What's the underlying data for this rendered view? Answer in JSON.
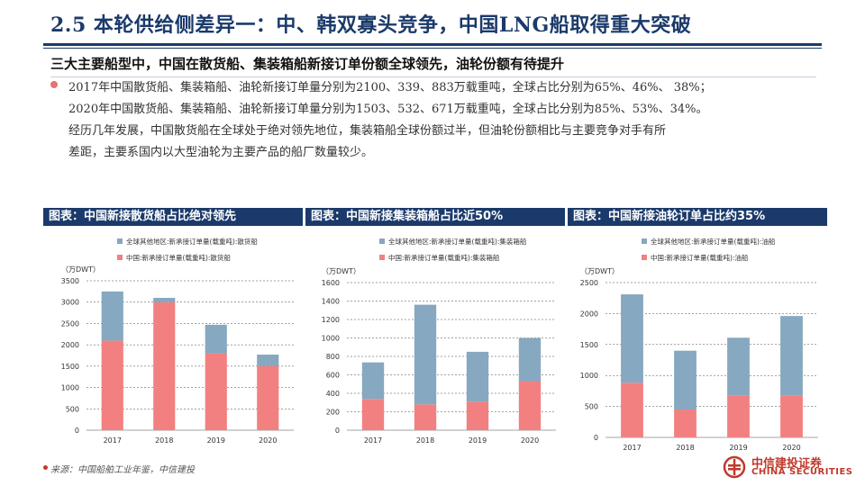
{
  "header": {
    "title": "2.5 本轮供给侧差异一：中、韩双寡头竞争，中国LNG船取得重大突破"
  },
  "subheading": "三大主要船型中，中国在散货船、集装箱船新接订单份额全球领先，油轮份额有待提升",
  "paragraph": [
    "2017年中国散货船、集装箱船、油轮新接订单量分别为2100、339、883万载重吨，全球占比分别为65%、46%、 38%；",
    "2020年中国散货船、集装箱船、油轮新接订单量分别为1503、532、671万载重吨，全球占比分别为85%、53%、34%。",
    "经历几年发展，中国散货船在全球处于绝对领先地位，集装箱船全球份额过半，但油轮份额相比与主要竞争对手有所",
    "差距，主要系国内以大型油轮为主要产品的船厂数量较少。"
  ],
  "colors": {
    "navy": "#1b3a6b",
    "other": "#86a8c0",
    "china": "#f28080"
  },
  "panels": [
    {
      "heading": "图表：中国新接散货船占比绝对领先"
    },
    {
      "heading": "图表：中国新接集装箱船占比近50%"
    },
    {
      "heading": "图表：中国新接油轮订单占比约35%"
    }
  ],
  "chart_data": [
    {
      "type": "bar",
      "stacked": true,
      "categories": [
        "2017",
        "2018",
        "2019",
        "2020"
      ],
      "ylabel": "（万DWT）",
      "ylim": [
        0,
        3500
      ],
      "yticks": [
        0,
        500,
        1000,
        1500,
        2000,
        2500,
        3000,
        3500
      ],
      "series": [
        {
          "name": "中国:新承接订单量(载重吨):散货船",
          "values": [
            2100,
            3000,
            1800,
            1503
          ]
        },
        {
          "name": "全球其他地区:新承接订单量(载重吨):散货船",
          "values": [
            1150,
            100,
            670,
            267
          ]
        }
      ]
    },
    {
      "type": "bar",
      "stacked": true,
      "categories": [
        "2017",
        "2018",
        "2019",
        "2020"
      ],
      "ylabel": "（万DWT）",
      "ylim": [
        0,
        1600
      ],
      "yticks": [
        0,
        200,
        400,
        600,
        800,
        1000,
        1200,
        1400,
        1600
      ],
      "series": [
        {
          "name": "中国:新承接订单量(载重吨):集装箱船",
          "values": [
            339,
            280,
            310,
            532
          ]
        },
        {
          "name": "全球其他地区:新承接订单量(载重吨):集装箱船",
          "values": [
            396,
            1080,
            540,
            468
          ]
        }
      ]
    },
    {
      "type": "bar",
      "stacked": true,
      "categories": [
        "2017",
        "2018",
        "2019",
        "2020"
      ],
      "ylabel": "（万DWT）",
      "ylim": [
        0,
        2500
      ],
      "yticks": [
        0,
        500,
        1000,
        1500,
        2000,
        2500
      ],
      "series": [
        {
          "name": "中国:新承接订单量(载重吨):油船",
          "values": [
            883,
            450,
            680,
            671
          ]
        },
        {
          "name": "全球其他地区:新承接订单量(载重吨):油船",
          "values": [
            1427,
            950,
            930,
            1289
          ]
        }
      ]
    }
  ],
  "footer": {
    "source": "来源：中国船舶工业年鉴，中信建投",
    "logo_cn": "中信建投证券",
    "logo_en": "CHINA SECURITIES"
  }
}
